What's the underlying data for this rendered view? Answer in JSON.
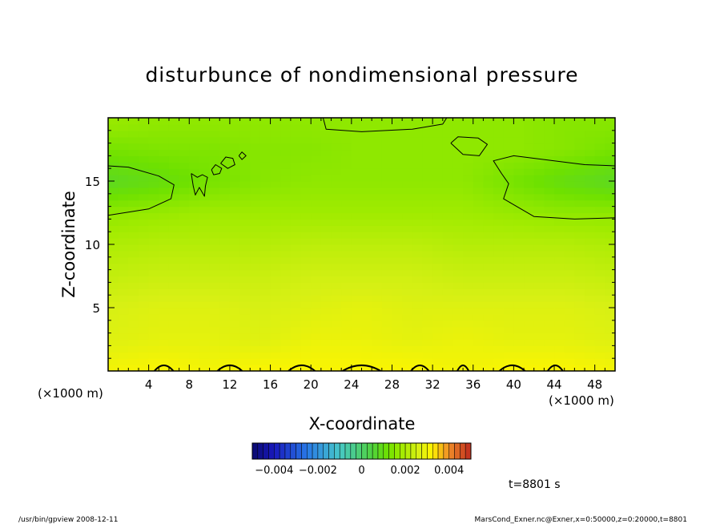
{
  "chart_data": {
    "type": "heatmap",
    "title": "disturbunce of nondimensional pressure",
    "xlabel": "X-coordinate",
    "ylabel": "Z-coordinate",
    "x_unit_left": "(×1000 m)",
    "x_unit_right": "(×1000 m)",
    "xlim": [
      0,
      50
    ],
    "ylim": [
      0,
      20
    ],
    "xticks": [
      4,
      8,
      12,
      16,
      20,
      24,
      28,
      32,
      36,
      40,
      44,
      48
    ],
    "yticks": [
      5,
      10,
      15
    ],
    "colorbar": {
      "range": [
        -0.005,
        0.005
      ],
      "tick_values": [
        -0.004,
        -0.002,
        0,
        0.002,
        0.004
      ],
      "tick_labels": [
        "−0.004",
        "−0.002",
        "0",
        "0.002",
        "0.004"
      ]
    },
    "field_rows": [
      {
        "z": 19.5,
        "values": [
          0.0017,
          0.0016,
          0.0016,
          0.0016,
          0.0016,
          0.0016,
          0.0016,
          0.0016,
          0.0016,
          0.0015,
          0.0015
        ]
      },
      {
        "z": 17.5,
        "values": [
          0.0013,
          0.0014,
          0.0014,
          0.0015,
          0.0015,
          0.0016,
          0.0016,
          0.0016,
          0.0016,
          0.0015,
          0.0013
        ]
      },
      {
        "z": 15.0,
        "values": [
          0.0008,
          0.001,
          0.0013,
          0.0015,
          0.0016,
          0.0016,
          0.0016,
          0.0016,
          0.0013,
          0.001,
          0.0008
        ]
      },
      {
        "z": 12.5,
        "values": [
          0.0016,
          0.0017,
          0.0018,
          0.0018,
          0.0018,
          0.0018,
          0.0018,
          0.0018,
          0.0017,
          0.0016,
          0.0016
        ]
      },
      {
        "z": 10.0,
        "values": [
          0.002,
          0.0021,
          0.0021,
          0.0021,
          0.0022,
          0.0022,
          0.0022,
          0.0021,
          0.0021,
          0.0021,
          0.002
        ]
      },
      {
        "z": 7.5,
        "values": [
          0.0023,
          0.0024,
          0.0024,
          0.0024,
          0.0025,
          0.0025,
          0.0025,
          0.0024,
          0.0024,
          0.0024,
          0.0023
        ]
      },
      {
        "z": 5.0,
        "values": [
          0.0026,
          0.0027,
          0.0027,
          0.0026,
          0.0027,
          0.0028,
          0.0027,
          0.0027,
          0.0027,
          0.0027,
          0.0026
        ]
      },
      {
        "z": 2.5,
        "values": [
          0.0027,
          0.0028,
          0.0028,
          0.0027,
          0.0029,
          0.0029,
          0.0028,
          0.0029,
          0.0028,
          0.0028,
          0.0027
        ]
      },
      {
        "z": 0.3,
        "values": [
          0.003,
          0.0031,
          0.003,
          0.0031,
          0.0031,
          0.0031,
          0.0031,
          0.003,
          0.0031,
          0.0031,
          0.003
        ]
      }
    ],
    "field_x": [
      0,
      5,
      10,
      15,
      20,
      25,
      30,
      35,
      40,
      45,
      50
    ],
    "contours": [
      {
        "name": "upper-left",
        "points": [
          [
            0,
            16.2
          ],
          [
            2,
            16.1
          ],
          [
            5,
            15.4
          ],
          [
            6.5,
            14.7
          ],
          [
            6.2,
            13.6
          ],
          [
            4,
            12.8
          ],
          [
            0,
            12.3
          ]
        ]
      },
      {
        "name": "upper-right",
        "points": [
          [
            50,
            16.2
          ],
          [
            47,
            16.3
          ],
          [
            44,
            16.6
          ],
          [
            40,
            17.0
          ],
          [
            38,
            16.6
          ],
          [
            38.8,
            15.6
          ],
          [
            39.5,
            14.8
          ],
          [
            39,
            13.6
          ],
          [
            42,
            12.2
          ],
          [
            46,
            12.0
          ],
          [
            50,
            12.1
          ]
        ]
      },
      {
        "name": "top-center",
        "points": [
          [
            21.2,
            20
          ],
          [
            21.5,
            19.1
          ],
          [
            25,
            18.9
          ],
          [
            30,
            19.1
          ],
          [
            33,
            19.5
          ],
          [
            33.4,
            20
          ]
        ]
      },
      {
        "name": "right-blob",
        "points": [
          [
            33.8,
            18.0
          ],
          [
            34.5,
            18.5
          ],
          [
            36.5,
            18.4
          ],
          [
            37.4,
            17.9
          ],
          [
            36.6,
            17.0
          ],
          [
            35,
            17.1
          ],
          [
            33.8,
            18.0
          ]
        ]
      },
      {
        "name": "blob-a",
        "points": [
          [
            8.2,
            15.6
          ],
          [
            8.8,
            15.3
          ],
          [
            9.3,
            15.5
          ],
          [
            9.8,
            15.3
          ],
          [
            9.6,
            14.6
          ],
          [
            9.5,
            13.8
          ],
          [
            9.0,
            14.5
          ],
          [
            8.6,
            13.9
          ],
          [
            8.4,
            14.6
          ],
          [
            8.2,
            15.6
          ]
        ]
      },
      {
        "name": "blob-b",
        "points": [
          [
            10.2,
            15.9
          ],
          [
            10.6,
            16.3
          ],
          [
            11.2,
            16.0
          ],
          [
            11.0,
            15.6
          ],
          [
            10.4,
            15.5
          ],
          [
            10.2,
            15.9
          ]
        ]
      },
      {
        "name": "blob-c",
        "points": [
          [
            11.1,
            16.4
          ],
          [
            11.6,
            16.9
          ],
          [
            12.3,
            16.8
          ],
          [
            12.5,
            16.3
          ],
          [
            11.8,
            16.0
          ],
          [
            11.1,
            16.4
          ]
        ]
      },
      {
        "name": "blob-d",
        "points": [
          [
            12.9,
            17.0
          ],
          [
            13.2,
            17.3
          ],
          [
            13.6,
            17.0
          ],
          [
            13.2,
            16.7
          ],
          [
            12.9,
            17.0
          ]
        ]
      }
    ],
    "surface_bumps_x": [
      [
        4.5,
        6.5
      ],
      [
        10.7,
        13.3
      ],
      [
        17.7,
        20.5
      ],
      [
        23,
        27
      ],
      [
        29.8,
        31.7
      ],
      [
        34.4,
        35.6
      ],
      [
        38.5,
        41.2
      ],
      [
        43.3,
        44.9
      ]
    ]
  },
  "time_label": "t=8801 s",
  "footer": {
    "left": "/usr/bin/gpview   2008-12-11",
    "right": "MarsCond_Exner.nc@Exner,x=0:50000,z=0:20000,t=8801"
  }
}
